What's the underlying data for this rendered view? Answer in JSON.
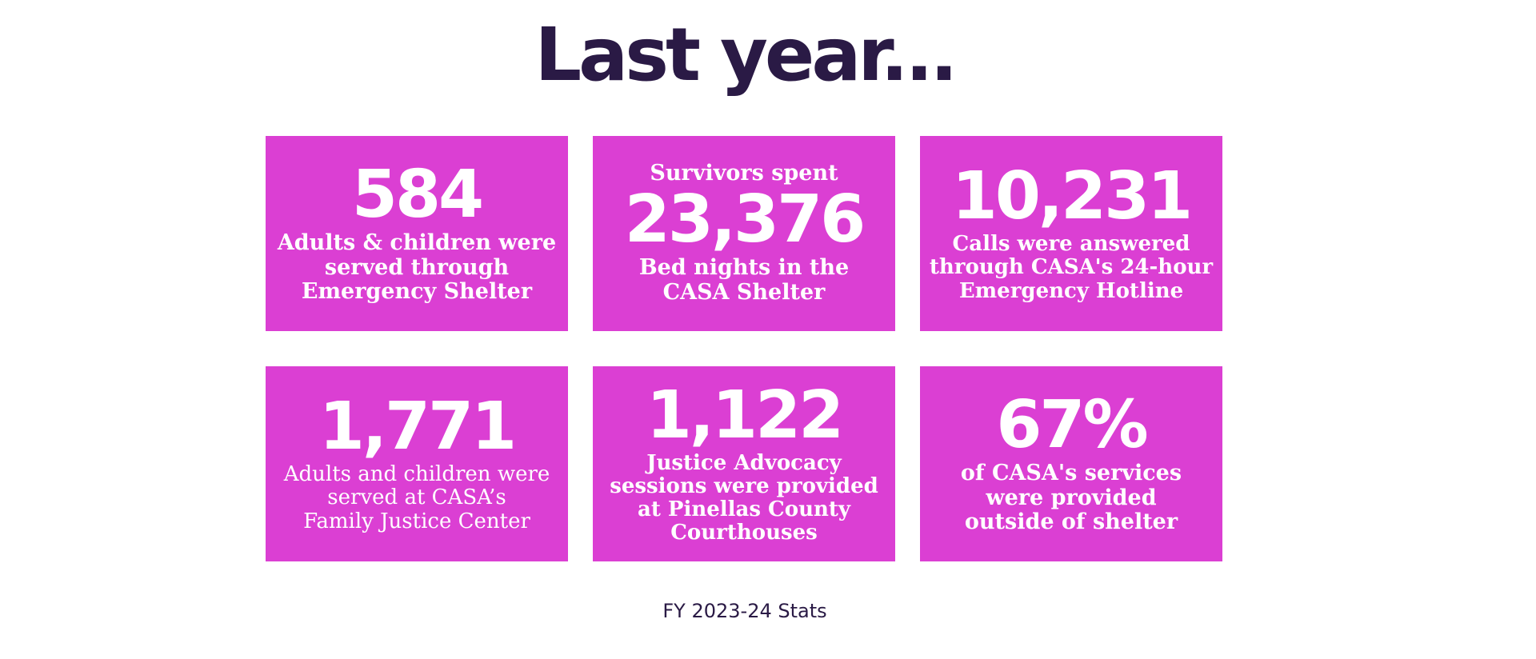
{
  "heading": "Last year...",
  "stats": [
    {
      "prefix": "",
      "number": "584",
      "lines": [
        "Adults & children were",
        "served through",
        "Emergency Shelter"
      ]
    },
    {
      "prefix": "Survivors spent",
      "number": "23,376",
      "lines": [
        "Bed nights in the",
        "CASA Shelter"
      ]
    },
    {
      "prefix": "",
      "number": "10,231",
      "lines": [
        "Calls were answered",
        "through CASA's 24-hour",
        "Emergency Hotline"
      ]
    },
    {
      "prefix": "",
      "number": "1,771",
      "lines": [
        "Adults and children were",
        "served at CASA’s",
        "Family Justice Center"
      ]
    },
    {
      "prefix": "",
      "number": "1,122",
      "lines": [
        "Justice Advocacy",
        "sessions were provided",
        "at Pinellas County",
        "Courthouses"
      ]
    },
    {
      "prefix": "",
      "number": "67%",
      "lines": [
        "of CASA's services",
        "were provided",
        "outside of shelter"
      ]
    }
  ],
  "footer": "FY 2023-24 Stats",
  "colors": {
    "tile_background": "#db3fd3",
    "heading_text": "#2a1a45",
    "tile_text": "#ffffff"
  }
}
